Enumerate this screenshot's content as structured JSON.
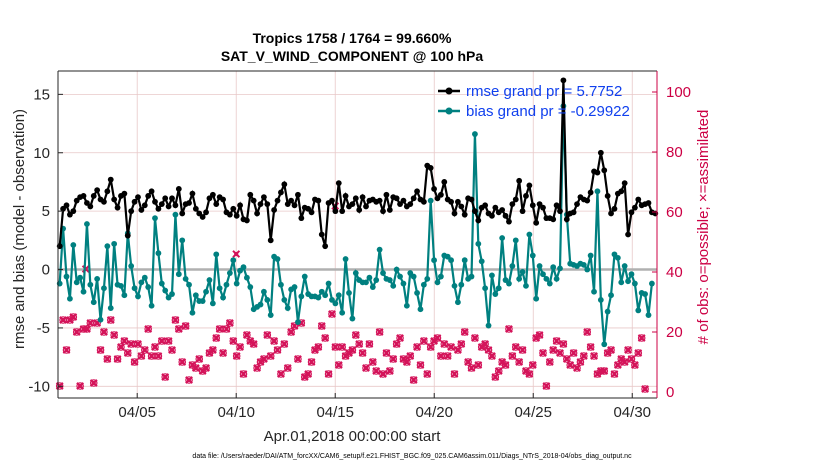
{
  "chart_data": {
    "type": "line",
    "title_line1": "Tropics 1758 / 1764 = 99.660%",
    "title_line2": "SAT_V_WIND_COMPONENT @ 100 hPa",
    "xlabel": "Apr.01,2018 00:00:00 start",
    "ylabel_left": "rmse and bias (model - observation)",
    "ylabel_right": "# of obs: o=possible; ×=assimilated",
    "footer": "data file: /Users/raeder/DAI/ATM_forcXX/CAM6_setup/f.e21.FHIST_BGC.f09_025.CAM6assim.011/Diags_NTrS_2018-04/obs_diag_output.nc",
    "xlim": [
      1,
      31.25
    ],
    "ylim_left": [
      -11,
      17
    ],
    "ylim_right": [
      -2,
      107
    ],
    "x_tick_values": [
      5,
      10,
      15,
      20,
      25,
      30
    ],
    "x_tick_labels": [
      "04/05",
      "04/10",
      "04/15",
      "04/20",
      "04/25",
      "04/30"
    ],
    "y_left_ticks": [
      -10,
      -5,
      0,
      5,
      10,
      15
    ],
    "y_right_ticks": [
      0,
      20,
      40,
      60,
      80,
      100
    ],
    "colors": {
      "rmse": "#000000",
      "bias": "#008080",
      "obs": "#d4145a",
      "legend_text": "#1040ee",
      "right_axis": "#cc0044",
      "zero_line": "#b0b0b0",
      "grid": "#e8c8c8"
    },
    "series": [
      {
        "name": "rmse grand pr = 5.7752",
        "axis": "left",
        "color": "#000000",
        "marker": "dot",
        "values": [
          2.0,
          5.2,
          5.5,
          4.7,
          5.0,
          5.9,
          6.2,
          6.3,
          5.7,
          5.4,
          6.3,
          6.8,
          6.0,
          5.8,
          6.7,
          7.7,
          6.0,
          5.3,
          6.3,
          6.5,
          2.9,
          5.0,
          5.8,
          6.2,
          5.1,
          5.5,
          6.3,
          6.7,
          5.8,
          5.2,
          5.6,
          6.1,
          5.4,
          6.1,
          5.5,
          6.9,
          4.8,
          5.6,
          5.7,
          6.5,
          5.2,
          4.8,
          4.5,
          4.9,
          6.1,
          6.4,
          5.6,
          6.2,
          6.0,
          4.9,
          4.7,
          5.2,
          4.6,
          5.5,
          4.3,
          4.2,
          6.4,
          5.9,
          4.8,
          5.6,
          6.2,
          5.6,
          2.5,
          5.1,
          5.9,
          6.6,
          7.3,
          5.6,
          5.9,
          5.5,
          6.4,
          4.4,
          5.3,
          5.2,
          4.9,
          6.0,
          5.9,
          3.0,
          2.0,
          5.7,
          5.9,
          5.0,
          7.4,
          5.0,
          6.3,
          5.4,
          5.6,
          6.1,
          5.1,
          6.2,
          5.4,
          5.9,
          6.0,
          5.8,
          5.9,
          5.0,
          6.4,
          5.1,
          6.2,
          6.1,
          5.6,
          5.9,
          5.4,
          5.6,
          6.1,
          6.7,
          6.0,
          5.8,
          8.9,
          8.7,
          6.9,
          6.1,
          6.4,
          7.5,
          6.0,
          5.8,
          4.8,
          5.8,
          5.4,
          4.7,
          6.1,
          6.0,
          5.0,
          4.2,
          5.3,
          5.5,
          4.8,
          4.6,
          5.3,
          4.9,
          5.1,
          4.6,
          4.1,
          5.6,
          6.0,
          7.6,
          5.0,
          6.3,
          7.2,
          5.5,
          4.0,
          5.6,
          5.3,
          4.4,
          4.4,
          4.3,
          5.5,
          5.0,
          16.2,
          4.3,
          4.8,
          4.9,
          5.6,
          6.2,
          6.0,
          5.9,
          6.6,
          8.4,
          8.3,
          10.0,
          8.5,
          6.3,
          4.8,
          5.2,
          6.5,
          6.7,
          7.4,
          3.0,
          4.9,
          5.3,
          6.0,
          5.5,
          5.6,
          5.7,
          4.9,
          4.8
        ]
      },
      {
        "name": "bias grand pr = -0.29922",
        "axis": "left",
        "color": "#008080",
        "marker": "dot",
        "values": [
          -1.2,
          3.5,
          -0.6,
          -2.5,
          2.1,
          -1.1,
          -0.7,
          -1.9,
          3.9,
          -1.3,
          -2.8,
          -0.8,
          -4.3,
          -1.6,
          2.0,
          -3.3,
          2.2,
          -1.3,
          -1.4,
          -2.2,
          3.1,
          0.3,
          -1.6,
          -2.3,
          -1.1,
          -0.7,
          -1.5,
          -3.1,
          4.4,
          1.4,
          -1.2,
          -1.8,
          -2.4,
          -2.1,
          4.7,
          -0.4,
          2.5,
          -0.8,
          -1.3,
          -3.7,
          -2.2,
          -2.7,
          -2.7,
          -1.9,
          -0.9,
          -2.9,
          1.3,
          -1.6,
          -2.4,
          -1.3,
          -0.3,
          0.8,
          -1.2,
          -0.1,
          0.2,
          -0.7,
          -1.5,
          -3.4,
          -3.2,
          -3.0,
          -1.9,
          -2.6,
          -3.9,
          1.1,
          0.9,
          -1.3,
          -2.6,
          -3.3,
          -1.7,
          -1.5,
          -4.5,
          -2.3,
          -0.6,
          -2.1,
          -2.3,
          -2.3,
          -2.4,
          -1.9,
          -2.2,
          -1.2,
          -2.6,
          -2.9,
          -2.2,
          -3.7,
          0.9,
          -2.0,
          -4.2,
          -0.3,
          -0.9,
          -1.1,
          -1.1,
          -0.7,
          -1.5,
          -0.9,
          1.7,
          -0.3,
          -0.8,
          -0.9,
          -1.4,
          0.0,
          -0.6,
          -1.2,
          -3.1,
          -0.3,
          -0.6,
          -2.0,
          -3.4,
          -1.3,
          -0.8,
          5.9,
          0.8,
          -1.1,
          -0.6,
          1.2,
          1.1,
          0.8,
          -1.4,
          -2.8,
          -1.3,
          0.8,
          -0.8,
          -0.6,
          11.6,
          2.2,
          0.7,
          -1.6,
          -4.8,
          -0.5,
          -2.1,
          -1.6,
          2.7,
          -0.9,
          -1.2,
          0.3,
          2.5,
          -0.8,
          -0.2,
          -1.4,
          3.0,
          1.2,
          -2.5,
          0.3,
          -0.4,
          -0.8,
          -1.2,
          0.2,
          -0.8,
          0.1,
          14.0,
          4.7,
          0.5,
          0.4,
          0.3,
          0.5,
          0.4,
          0.0,
          1.2,
          -1.9,
          6.7,
          -2.6,
          -6.4,
          -3.6,
          -2.2,
          1.3,
          1.0,
          -1.1,
          0.3,
          -1.0,
          -0.4,
          -1.2,
          -3.5,
          -2.0,
          -2.1,
          -3.9,
          -1.2
        ]
      },
      {
        "name": "possible",
        "axis": "right",
        "color": "#d4145a",
        "marker": "circle",
        "values": [
          2,
          24,
          14,
          24,
          25,
          20,
          2,
          21,
          21,
          23,
          3,
          23,
          14,
          20,
          11,
          24,
          19,
          11,
          15,
          17,
          13,
          16,
          10,
          16,
          12,
          14,
          21,
          12,
          15,
          12,
          17,
          5,
          17,
          14,
          24,
          21,
          10,
          22,
          4,
          9,
          8,
          11,
          7,
          8,
          13,
          14,
          18,
          21,
          13,
          21,
          23,
          17,
          12,
          15,
          6,
          19,
          17,
          16,
          8,
          10,
          11,
          19,
          12,
          17,
          14,
          6,
          16,
          8,
          20,
          22,
          11,
          23,
          5,
          6,
          10,
          14,
          15,
          22,
          18,
          6,
          26,
          15,
          9,
          15,
          12,
          13,
          14,
          19,
          16,
          13,
          8,
          16,
          10,
          7,
          20,
          6,
          13,
          7,
          11,
          16,
          18,
          11,
          10,
          12,
          4,
          15,
          9,
          17,
          6,
          15,
          17,
          18,
          12,
          16,
          12,
          15,
          6,
          14,
          16,
          20,
          10,
          8,
          18,
          9,
          15,
          16,
          14,
          12,
          5,
          7,
          10,
          9,
          21,
          12,
          15,
          10,
          14,
          7,
          6,
          9,
          18,
          19,
          13,
          2,
          10,
          14,
          17,
          13,
          16,
          11,
          9,
          13,
          8,
          10,
          12,
          20,
          15,
          12,
          6,
          7,
          7,
          13,
          14,
          6,
          9,
          11,
          10,
          14,
          11,
          9,
          13,
          18,
          1
        ]
      },
      {
        "name": "assimilated",
        "axis": "right",
        "color": "#d4145a",
        "marker": "x",
        "values": [
          2,
          24,
          14,
          24,
          25,
          20,
          2,
          21,
          21,
          23,
          3,
          23,
          14,
          20,
          11,
          24,
          19,
          11,
          15,
          17,
          13,
          16,
          10,
          16,
          12,
          14,
          21,
          12,
          15,
          12,
          17,
          5,
          17,
          14,
          24,
          21,
          10,
          22,
          4,
          9,
          8,
          11,
          7,
          8,
          13,
          14,
          18,
          21,
          13,
          21,
          23,
          17,
          12,
          15,
          6,
          19,
          17,
          16,
          8,
          10,
          11,
          19,
          12,
          17,
          14,
          6,
          16,
          8,
          20,
          22,
          11,
          23,
          5,
          6,
          10,
          14,
          15,
          22,
          18,
          6,
          26,
          15,
          9,
          15,
          12,
          13,
          14,
          19,
          16,
          13,
          8,
          16,
          10,
          7,
          20,
          6,
          13,
          7,
          11,
          16,
          18,
          11,
          10,
          12,
          4,
          15,
          9,
          17,
          6,
          15,
          17,
          18,
          12,
          16,
          12,
          15,
          6,
          14,
          16,
          20,
          10,
          8,
          18,
          9,
          15,
          16,
          14,
          12,
          5,
          7,
          10,
          9,
          21,
          12,
          15,
          10,
          14,
          7,
          6,
          9,
          18,
          19,
          13,
          2,
          10,
          14,
          17,
          13,
          16,
          11,
          9,
          13,
          8,
          10,
          12,
          20,
          15,
          12,
          6,
          7,
          7,
          13,
          14,
          6,
          9,
          11,
          10,
          14,
          11,
          9,
          13,
          18,
          1
        ]
      }
    ],
    "extra_obs_points": [
      {
        "x": 2.4,
        "y": 41
      },
      {
        "x": 10.0,
        "y": 46
      },
      {
        "x": 15.0,
        "y": 62
      }
    ]
  }
}
